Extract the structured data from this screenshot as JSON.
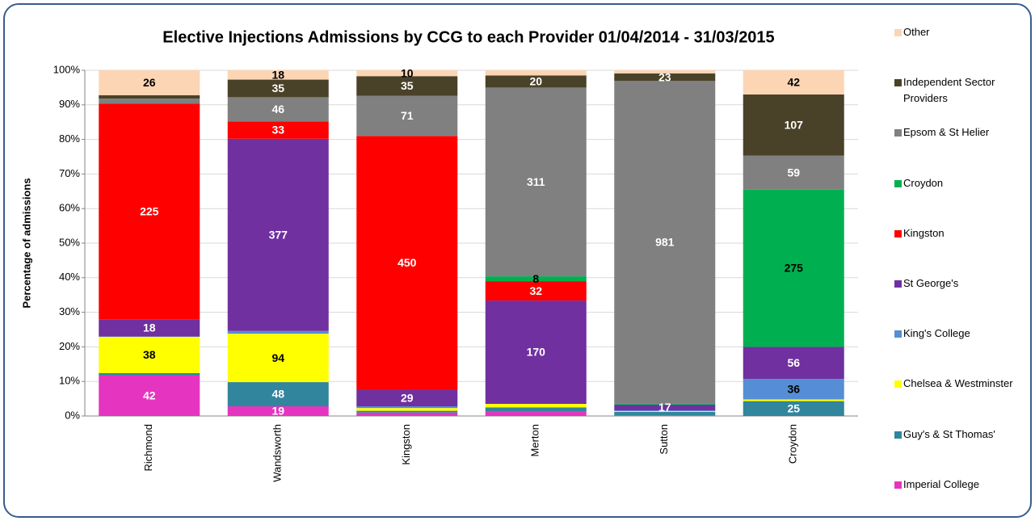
{
  "chart_data": {
    "type": "stacked_bar_100",
    "title": "Elective Injections Admissions by CCG to each Provider 01/04/2014 - 31/03/2015",
    "y_label": "Percentage of admissions",
    "categories": [
      "Richmond",
      "Wandsworth",
      "Kingston",
      "Merton",
      "Sutton",
      "Croydon"
    ],
    "ylim": [
      0,
      100
    ],
    "yticks": [
      {
        "value": 0,
        "label": "0%"
      },
      {
        "value": 10,
        "label": "10%"
      },
      {
        "value": 20,
        "label": "20%"
      },
      {
        "value": 30,
        "label": "30%"
      },
      {
        "value": 40,
        "label": "40%"
      },
      {
        "value": 50,
        "label": "50%"
      },
      {
        "value": 60,
        "label": "60%"
      },
      {
        "value": 70,
        "label": "70%"
      },
      {
        "value": 80,
        "label": "80%"
      },
      {
        "value": 90,
        "label": "90%"
      },
      {
        "value": 100,
        "label": "100%"
      }
    ],
    "grid": true,
    "legend": "right",
    "series": [
      {
        "name": "Imperial College",
        "color": "#e535c0",
        "label_color": "#ffffff",
        "values": [
          11.7,
          2.8,
          1.0,
          1.2,
          0.2,
          0
        ],
        "counts": [
          42,
          19,
          null,
          null,
          null,
          null
        ]
      },
      {
        "name": "Guy's & St Thomas'",
        "color": "#31859c",
        "label_color": "#ffffff",
        "values": [
          0.7,
          7.0,
          0.5,
          1.3,
          1.0,
          4.3
        ],
        "counts": [
          null,
          48,
          null,
          null,
          null,
          25
        ]
      },
      {
        "name": "Chelsea & Westminster",
        "color": "#ffff00",
        "label_color": "#000000",
        "values": [
          10.5,
          14.0,
          0.8,
          1.0,
          0.2,
          0.5
        ],
        "counts": [
          38,
          94,
          null,
          null,
          null,
          null
        ]
      },
      {
        "name": "King's College",
        "color": "#558ed5",
        "label_color": "#000000",
        "values": [
          0.1,
          0.8,
          0.5,
          0,
          0.2,
          5.9
        ],
        "counts": [
          null,
          null,
          null,
          null,
          null,
          36
        ]
      },
      {
        "name": "St George's",
        "color": "#7030a0",
        "label_color": "#ffffff",
        "values": [
          5.0,
          55.6,
          4.8,
          29.9,
          1.7,
          9.3
        ],
        "counts": [
          18,
          377,
          29,
          170,
          17,
          56
        ]
      },
      {
        "name": "Kingston",
        "color": "#ff0000",
        "label_color": "#ffffff",
        "values": [
          62.3,
          5.0,
          73.4,
          5.6,
          0,
          0
        ],
        "counts": [
          225,
          33,
          450,
          32,
          null,
          null
        ]
      },
      {
        "name": "Croydon",
        "color": "#00b050",
        "label_color": "#000000",
        "values": [
          0,
          0,
          0,
          1.4,
          0.3,
          45.5
        ],
        "counts": [
          null,
          null,
          null,
          8,
          null,
          275
        ]
      },
      {
        "name": "Epsom & St Helier",
        "color": "#808080",
        "label_color": "#ffffff",
        "values": [
          1.5,
          7.0,
          11.6,
          54.6,
          93.3,
          9.8
        ],
        "counts": [
          null,
          46,
          71,
          311,
          981,
          59
        ]
      },
      {
        "name": "Independent Sector Providers",
        "color": "#4a4228",
        "label_color": "#ffffff",
        "values": [
          1.0,
          5.1,
          5.7,
          3.5,
          2.2,
          17.7
        ],
        "counts": [
          null,
          35,
          35,
          20,
          23,
          107
        ]
      },
      {
        "name": "Other",
        "color": "#fcd5b5",
        "label_color": "#000000",
        "values": [
          7.2,
          2.7,
          1.7,
          1.5,
          0.9,
          7.0
        ],
        "counts": [
          26,
          18,
          10,
          null,
          null,
          42
        ]
      }
    ]
  }
}
